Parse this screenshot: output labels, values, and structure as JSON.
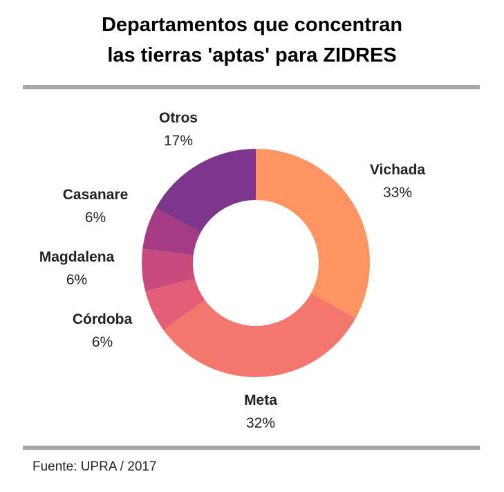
{
  "title": {
    "line1": "Departamentos que concentran",
    "line2": "las tierras 'aptas' para ZIDRES"
  },
  "source": "Fuente: UPRA / 2017",
  "chart_data": {
    "type": "pie",
    "variant": "donut",
    "title": "Departamentos que concentran las tierras 'aptas' para ZIDRES",
    "start": "12 o'clock, clockwise",
    "slices": [
      {
        "label": "Vichada",
        "value": 33,
        "display": "33%",
        "color": "#fd9462"
      },
      {
        "label": "Meta",
        "value": 32,
        "display": "32%",
        "color": "#f3776d"
      },
      {
        "label": "Córdoba",
        "value": 6,
        "display": "6%",
        "color": "#e25f76"
      },
      {
        "label": "Magdalena",
        "value": 6,
        "display": "6%",
        "color": "#c94a7d"
      },
      {
        "label": "Casanare",
        "value": 6,
        "display": "6%",
        "color": "#a53a85"
      },
      {
        "label": "Otros",
        "value": 17,
        "display": "17%",
        "color": "#7c378c"
      }
    ]
  }
}
